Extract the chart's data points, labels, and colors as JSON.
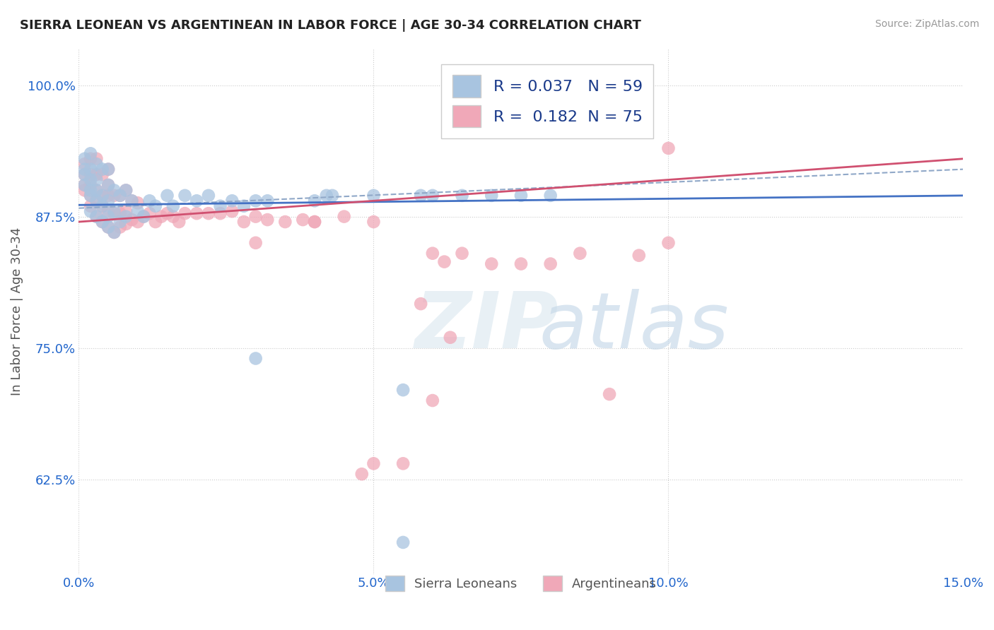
{
  "title": "SIERRA LEONEAN VS ARGENTINEAN IN LABOR FORCE | AGE 30-34 CORRELATION CHART",
  "source": "Source: ZipAtlas.com",
  "xlabel": "",
  "ylabel": "In Labor Force | Age 30-34",
  "xlim": [
    0.0,
    0.15
  ],
  "ylim": [
    0.535,
    1.035
  ],
  "xticks": [
    0.0,
    0.05,
    0.1,
    0.15
  ],
  "xticklabels": [
    "0.0%",
    "5.0%",
    "10.0%",
    "15.0%"
  ],
  "yticks": [
    0.625,
    0.75,
    0.875,
    1.0
  ],
  "yticklabels": [
    "62.5%",
    "75.0%",
    "87.5%",
    "100.0%"
  ],
  "blue_color": "#a8c4e0",
  "pink_color": "#f0a8b8",
  "blue_line_color": "#4472c4",
  "pink_line_color": "#d05070",
  "dashed_line_color": "#90a8c8",
  "R_blue": 0.037,
  "N_blue": 59,
  "R_pink": 0.182,
  "N_pink": 75,
  "legend_color": "#1a3a8a",
  "blue_scatter_x": [
    0.001,
    0.001,
    0.001,
    0.001,
    0.002,
    0.002,
    0.002,
    0.002,
    0.002,
    0.002,
    0.003,
    0.003,
    0.003,
    0.003,
    0.003,
    0.004,
    0.004,
    0.004,
    0.004,
    0.005,
    0.005,
    0.005,
    0.005,
    0.005,
    0.006,
    0.006,
    0.006,
    0.007,
    0.007,
    0.008,
    0.008,
    0.009,
    0.01,
    0.011,
    0.012,
    0.013,
    0.015,
    0.016,
    0.018,
    0.02,
    0.022,
    0.024,
    0.026,
    0.028,
    0.03,
    0.032,
    0.04,
    0.042,
    0.043,
    0.05,
    0.055,
    0.058,
    0.06,
    0.065,
    0.07,
    0.075,
    0.08,
    0.055,
    0.03
  ],
  "blue_scatter_y": [
    0.905,
    0.915,
    0.92,
    0.93,
    0.88,
    0.895,
    0.9,
    0.91,
    0.92,
    0.935,
    0.875,
    0.89,
    0.9,
    0.91,
    0.925,
    0.87,
    0.885,
    0.895,
    0.92,
    0.865,
    0.875,
    0.89,
    0.905,
    0.92,
    0.86,
    0.88,
    0.9,
    0.87,
    0.895,
    0.875,
    0.9,
    0.89,
    0.88,
    0.875,
    0.89,
    0.885,
    0.895,
    0.885,
    0.895,
    0.89,
    0.895,
    0.885,
    0.89,
    0.885,
    0.89,
    0.89,
    0.89,
    0.895,
    0.895,
    0.895,
    0.71,
    0.895,
    0.895,
    0.895,
    0.895,
    0.895,
    0.895,
    0.565,
    0.74
  ],
  "pink_scatter_x": [
    0.001,
    0.001,
    0.001,
    0.001,
    0.002,
    0.002,
    0.002,
    0.002,
    0.002,
    0.003,
    0.003,
    0.003,
    0.003,
    0.003,
    0.004,
    0.004,
    0.004,
    0.004,
    0.005,
    0.005,
    0.005,
    0.005,
    0.005,
    0.006,
    0.006,
    0.006,
    0.007,
    0.007,
    0.007,
    0.008,
    0.008,
    0.008,
    0.009,
    0.009,
    0.01,
    0.01,
    0.011,
    0.012,
    0.013,
    0.014,
    0.015,
    0.016,
    0.017,
    0.018,
    0.02,
    0.022,
    0.024,
    0.026,
    0.028,
    0.03,
    0.032,
    0.035,
    0.038,
    0.04,
    0.045,
    0.05,
    0.058,
    0.06,
    0.062,
    0.065,
    0.07,
    0.075,
    0.08,
    0.085,
    0.09,
    0.095,
    0.1,
    0.03,
    0.04,
    0.05,
    0.06,
    0.063,
    0.048,
    0.055,
    0.1
  ],
  "pink_scatter_y": [
    0.9,
    0.905,
    0.915,
    0.925,
    0.885,
    0.895,
    0.905,
    0.915,
    0.93,
    0.875,
    0.89,
    0.9,
    0.915,
    0.93,
    0.87,
    0.885,
    0.895,
    0.915,
    0.865,
    0.88,
    0.895,
    0.905,
    0.92,
    0.86,
    0.878,
    0.895,
    0.865,
    0.878,
    0.895,
    0.868,
    0.88,
    0.9,
    0.872,
    0.89,
    0.87,
    0.888,
    0.875,
    0.878,
    0.87,
    0.875,
    0.878,
    0.875,
    0.87,
    0.878,
    0.878,
    0.878,
    0.878,
    0.88,
    0.87,
    0.875,
    0.872,
    0.87,
    0.872,
    0.87,
    0.875,
    0.87,
    0.792,
    0.84,
    0.832,
    0.84,
    0.83,
    0.83,
    0.83,
    0.84,
    0.706,
    0.838,
    0.94,
    0.85,
    0.87,
    0.64,
    0.7,
    0.76,
    0.63,
    0.64,
    0.85
  ]
}
